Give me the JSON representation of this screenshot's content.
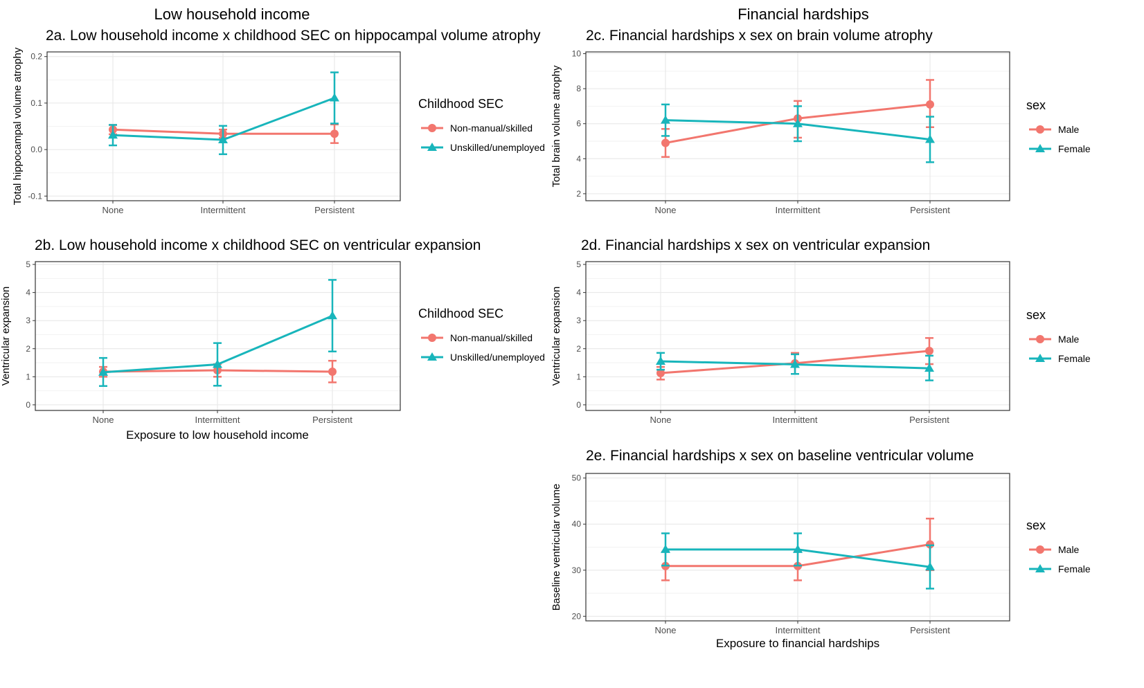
{
  "headers": {
    "left": "Low household income",
    "right": "Financial hardships"
  },
  "colors": {
    "male_or_nonmanual": "#F2766E",
    "female_or_unskilled": "#18B5BB",
    "panel_border": "#333333",
    "grid": "#E6E6E6"
  },
  "x_titles": {
    "left": "Exposure to low household income",
    "right": "Exposure to financial hardships"
  },
  "chart_data": [
    {
      "id": "2a",
      "type": "line",
      "title": "2a. Low household income x childhood SEC on hippocampal volume atrophy",
      "ylabel": "Total hippocampal volume atrophy",
      "xlabel": "",
      "categories": [
        "None",
        "Intermittent",
        "Persistent"
      ],
      "ylim": [
        -0.11,
        0.21
      ],
      "yticks": [
        -0.1,
        0.0,
        0.1,
        0.2
      ],
      "ytick_labels": [
        "-0.1",
        "0.0",
        "0.1",
        "0.2"
      ],
      "legend_title": "Childhood SEC",
      "legend_position": "right",
      "grid": true,
      "series": [
        {
          "name": "Non-manual/skilled",
          "color": "#F2766E",
          "marker": "circle",
          "values": [
            0.043,
            0.034,
            0.034
          ],
          "lower": [
            0.033,
            0.025,
            0.014
          ],
          "upper": [
            0.053,
            0.043,
            0.054
          ]
        },
        {
          "name": "Unskilled/unemployed",
          "color": "#18B5BB",
          "marker": "triangle",
          "values": [
            0.031,
            0.021,
            0.111
          ],
          "lower": [
            0.009,
            -0.01,
            0.056
          ],
          "upper": [
            0.053,
            0.051,
            0.166
          ]
        }
      ]
    },
    {
      "id": "2c",
      "type": "line",
      "title": "2c. Financial hardships x sex on brain volume atrophy",
      "ylabel": "Total brain volume atrophy",
      "xlabel": "",
      "categories": [
        "None",
        "Intermittent",
        "Persistent"
      ],
      "ylim": [
        1.6,
        10.1
      ],
      "yticks": [
        2,
        4,
        6,
        8,
        10
      ],
      "ytick_labels": [
        "2",
        "4",
        "6",
        "8",
        "10"
      ],
      "legend_title": "sex",
      "legend_position": "right",
      "grid": true,
      "series": [
        {
          "name": "Male",
          "color": "#F2766E",
          "marker": "circle",
          "values": [
            4.9,
            6.3,
            7.1
          ],
          "lower": [
            4.1,
            5.2,
            5.8
          ],
          "upper": [
            5.7,
            7.3,
            8.5
          ]
        },
        {
          "name": "Female",
          "color": "#18B5BB",
          "marker": "triangle",
          "values": [
            6.2,
            6.0,
            5.1
          ],
          "lower": [
            5.3,
            5.0,
            3.8
          ],
          "upper": [
            7.1,
            7.0,
            6.4
          ]
        }
      ]
    },
    {
      "id": "2b",
      "type": "line",
      "title": "2b. Low household income x childhood SEC on ventricular expansion",
      "ylabel": "Ventricular expansion",
      "xlabel": "Exposure to low household income",
      "categories": [
        "None",
        "Intermittent",
        "Persistent"
      ],
      "ylim": [
        -0.2,
        5.1
      ],
      "yticks": [
        0,
        1,
        2,
        3,
        4,
        5
      ],
      "ytick_labels": [
        "0",
        "1",
        "2",
        "3",
        "4",
        "5"
      ],
      "legend_title": "Childhood SEC",
      "legend_position": "right",
      "grid": true,
      "series": [
        {
          "name": "Non-manual/skilled",
          "color": "#F2766E",
          "marker": "circle",
          "values": [
            1.18,
            1.23,
            1.18
          ],
          "lower": [
            1.0,
            1.0,
            0.8
          ],
          "upper": [
            1.35,
            1.45,
            1.57
          ]
        },
        {
          "name": "Unskilled/unemployed",
          "color": "#18B5BB",
          "marker": "triangle",
          "values": [
            1.16,
            1.44,
            3.17
          ],
          "lower": [
            0.67,
            0.68,
            1.9
          ],
          "upper": [
            1.67,
            2.2,
            4.45
          ]
        }
      ]
    },
    {
      "id": "2d",
      "type": "line",
      "title": "2d. Financial hardships x sex on ventricular expansion",
      "ylabel": "Ventricular expansion",
      "xlabel": "",
      "categories": [
        "None",
        "Intermittent",
        "Persistent"
      ],
      "ylim": [
        -0.2,
        5.1
      ],
      "yticks": [
        0,
        1,
        2,
        3,
        4,
        5
      ],
      "ytick_labels": [
        "0",
        "1",
        "2",
        "3",
        "4",
        "5"
      ],
      "legend_title": "sex",
      "legend_position": "right",
      "grid": true,
      "series": [
        {
          "name": "Male",
          "color": "#F2766E",
          "marker": "circle",
          "values": [
            1.13,
            1.48,
            1.92
          ],
          "lower": [
            0.9,
            1.1,
            1.45
          ],
          "upper": [
            1.35,
            1.85,
            2.38
          ]
        },
        {
          "name": "Female",
          "color": "#18B5BB",
          "marker": "triangle",
          "values": [
            1.55,
            1.44,
            1.3
          ],
          "lower": [
            1.25,
            1.1,
            0.87
          ],
          "upper": [
            1.85,
            1.8,
            1.75
          ]
        }
      ]
    },
    {
      "id": "2e",
      "type": "line",
      "title": "2e. Financial hardships x sex on baseline ventricular volume",
      "ylabel": "Baseline ventricular volume",
      "xlabel": "Exposure to financial hardships",
      "categories": [
        "None",
        "Intermittent",
        "Persistent"
      ],
      "ylim": [
        19,
        51
      ],
      "yticks": [
        20,
        30,
        40,
        50
      ],
      "ytick_labels": [
        "20",
        "30",
        "40",
        "50"
      ],
      "legend_title": "sex",
      "legend_position": "right",
      "grid": true,
      "series": [
        {
          "name": "Male",
          "color": "#F2766E",
          "marker": "circle",
          "values": [
            30.9,
            30.9,
            35.6
          ],
          "lower": [
            27.8,
            27.8,
            30.0
          ],
          "upper": [
            34.0,
            34.0,
            41.2
          ]
        },
        {
          "name": "Female",
          "color": "#18B5BB",
          "marker": "triangle",
          "values": [
            34.5,
            34.5,
            30.7
          ],
          "lower": [
            31.0,
            31.0,
            26.0
          ],
          "upper": [
            38.0,
            38.0,
            35.4
          ]
        }
      ]
    }
  ]
}
